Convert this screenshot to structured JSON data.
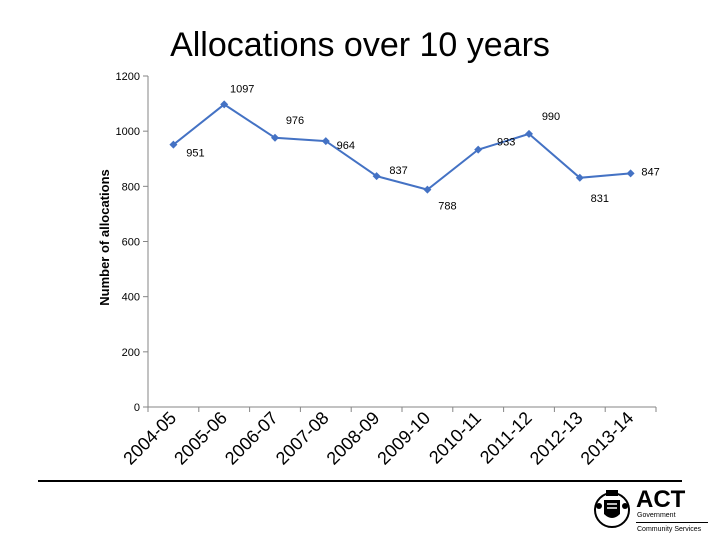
{
  "title": "Allocations over 10 years",
  "chart_data": {
    "type": "line",
    "title": "Allocations over 10 years",
    "xlabel": "",
    "ylabel": "Number of allocations",
    "categories": [
      "2004-05",
      "2005-06",
      "2006-07",
      "2007-08",
      "2008-09",
      "2009-10",
      "2010-11",
      "2011-12",
      "2012-13",
      "2013-14"
    ],
    "series": [
      {
        "values": [
          951,
          1097,
          976,
          964,
          837,
          788,
          933,
          990,
          831,
          847
        ],
        "color": "#4472C4"
      }
    ],
    "data_labels": [
      "951",
      "1097",
      "976",
      "964",
      "837",
      "788",
      "933",
      "990",
      "831",
      "847"
    ],
    "yticks": [
      "0",
      "200",
      "400",
      "600",
      "800",
      "1000",
      "1200"
    ],
    "ylim": [
      0,
      1200
    ],
    "grid": false,
    "legend": "none"
  },
  "logo": {
    "name": "ACT",
    "line1": "Government",
    "line2": "Community Services"
  }
}
